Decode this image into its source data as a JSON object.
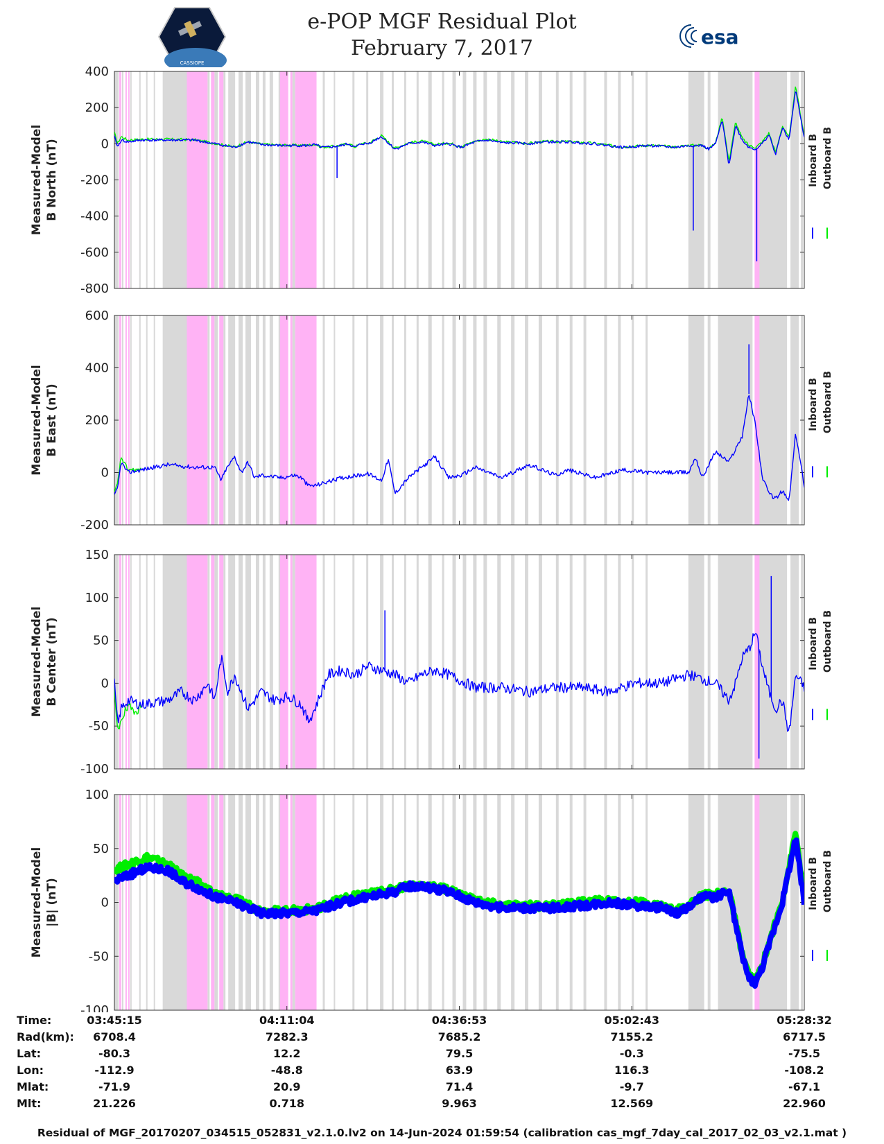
{
  "header": {
    "title_line1": "e-POP MGF Residual Plot",
    "title_line2": "February 7, 2017",
    "logo_left_text": "CASSIOPE",
    "logo_right_text": "esa"
  },
  "colors": {
    "inboard": "#0000ff",
    "outboard": "#00ee00",
    "gray_band": "#d9d9d9",
    "pink_band": "#ffb3f5"
  },
  "legend": {
    "inboard": "Inboard B",
    "outboard": "Outboard B"
  },
  "chart_data": [
    {
      "type": "line",
      "ylabel_line1": "Measured-Model",
      "ylabel_line2": "B North (nT)",
      "ylim": [
        -800,
        400
      ],
      "yticks": [
        400,
        200,
        0,
        -200,
        -400,
        -600,
        -800
      ],
      "xlim": [
        0,
        6197
      ],
      "series": [
        {
          "name": "Inboard B",
          "x": [
            0,
            30,
            60,
            120,
            240,
            480,
            720,
            900,
            1080,
            1200,
            1320,
            1500,
            1620,
            1740,
            1800,
            1860,
            1920,
            2040,
            2100,
            2160,
            2220,
            2280,
            2400,
            2520,
            2640,
            2760,
            2880,
            3000,
            3120,
            3240,
            3360,
            3480,
            3600,
            3720,
            3840,
            4080,
            4320,
            4560,
            4800,
            4920,
            5040,
            5160,
            5280,
            5340,
            5400,
            5460,
            5520,
            5580,
            5640,
            5700,
            5760,
            5820,
            5880,
            5940,
            6000,
            6060,
            6120,
            6197
          ],
          "values": [
            40,
            -20,
            20,
            10,
            20,
            20,
            20,
            0,
            -20,
            10,
            -5,
            -10,
            -10,
            -10,
            -5,
            -20,
            -20,
            -10,
            0,
            -20,
            0,
            0,
            40,
            -30,
            0,
            10,
            -10,
            0,
            -20,
            10,
            20,
            5,
            5,
            0,
            10,
            10,
            0,
            -20,
            -10,
            -15,
            -20,
            -10,
            -10,
            -30,
            0,
            130,
            -120,
            100,
            20,
            -20,
            -30,
            0,
            50,
            -60,
            90,
            20,
            300,
            30
          ]
        },
        {
          "name": "Outboard B",
          "x": [
            0,
            30,
            60,
            120,
            240,
            480,
            720,
            900,
            1080,
            1200,
            1320,
            1500,
            1620,
            1740,
            1800,
            1860,
            1920,
            2040,
            2100,
            2160,
            2220,
            2280,
            2400,
            2520,
            2640,
            2760,
            2880,
            3000,
            3120,
            3240,
            3360,
            3480,
            3600,
            3720,
            3840,
            4080,
            4320,
            4560,
            4800,
            4920,
            5040,
            5160,
            5280,
            5340,
            5400,
            5460,
            5520,
            5580,
            5640,
            5700,
            5760,
            5820,
            5880,
            5940,
            6000,
            6060,
            6120,
            6197
          ],
          "values": [
            60,
            0,
            40,
            20,
            25,
            25,
            22,
            2,
            -18,
            12,
            -3,
            -8,
            -8,
            -8,
            -3,
            -18,
            -18,
            -8,
            2,
            -18,
            2,
            2,
            45,
            -25,
            5,
            15,
            -5,
            5,
            -15,
            15,
            25,
            10,
            8,
            2,
            12,
            12,
            2,
            -18,
            -8,
            -13,
            -18,
            -8,
            -8,
            -28,
            5,
            150,
            -100,
            120,
            30,
            -10,
            -20,
            10,
            60,
            -50,
            100,
            30,
            320,
            40
          ]
        }
      ],
      "spikes": [
        {
          "x": 2000,
          "value": -190
        },
        {
          "x": 5770,
          "value": -650
        },
        {
          "x": 5200,
          "value": -480
        }
      ]
    },
    {
      "type": "line",
      "ylabel_line1": "Measured-Model",
      "ylabel_line2": "B East (nT)",
      "ylim": [
        -200,
        600
      ],
      "yticks": [
        600,
        400,
        200,
        0,
        -200
      ],
      "xlim": [
        0,
        6197
      ],
      "series": [
        {
          "name": "Inboard B",
          "x": [
            0,
            30,
            60,
            120,
            240,
            480,
            720,
            900,
            960,
            1000,
            1080,
            1140,
            1200,
            1260,
            1320,
            1500,
            1620,
            1680,
            1740,
            1800,
            2040,
            2280,
            2400,
            2460,
            2520,
            2640,
            2880,
            3000,
            3120,
            3240,
            3480,
            3720,
            3960,
            4080,
            4320,
            4560,
            4800,
            5160,
            5220,
            5280,
            5400,
            5520,
            5640,
            5700,
            5760,
            5820,
            5880,
            5940,
            6000,
            6060,
            6120,
            6197
          ],
          "values": [
            -90,
            -60,
            40,
            0,
            10,
            30,
            20,
            20,
            -30,
            10,
            60,
            0,
            40,
            -20,
            -10,
            -20,
            -10,
            -20,
            -50,
            -50,
            -20,
            -5,
            -30,
            50,
            -80,
            -20,
            60,
            -20,
            -10,
            20,
            -20,
            30,
            -10,
            10,
            -20,
            10,
            0,
            0,
            60,
            -20,
            80,
            40,
            140,
            300,
            180,
            -20,
            -80,
            -100,
            -70,
            -110,
            150,
            -50
          ]
        },
        {
          "name": "Outboard B",
          "x": [
            0,
            30,
            60,
            120,
            240
          ],
          "values": [
            -80,
            -40,
            60,
            10,
            10
          ]
        }
      ],
      "spikes": [
        {
          "x": 5700,
          "value": 490
        }
      ]
    },
    {
      "type": "line",
      "ylabel_line1": "Measured-Model",
      "ylabel_line2": "B Center (nT)",
      "ylim": [
        -100,
        150
      ],
      "yticks": [
        150,
        100,
        50,
        0,
        -50,
        -100
      ],
      "xlim": [
        0,
        6197
      ],
      "series": [
        {
          "name": "Inboard B",
          "x": [
            0,
            30,
            60,
            120,
            240,
            480,
            600,
            720,
            840,
            900,
            960,
            1020,
            1080,
            1200,
            1320,
            1440,
            1560,
            1680,
            1740,
            1800,
            1920,
            2040,
            2160,
            2280,
            2400,
            2520,
            2640,
            2760,
            2880,
            3000,
            3240,
            3480,
            3720,
            3960,
            4200,
            4440,
            4680,
            4920,
            5040,
            5160,
            5280,
            5400,
            5520,
            5580,
            5640,
            5700,
            5760,
            5820,
            5880,
            5940,
            6000,
            6060,
            6120,
            6197
          ],
          "values": [
            0,
            -50,
            -30,
            -20,
            -25,
            -20,
            -10,
            -20,
            0,
            -20,
            30,
            -10,
            10,
            -30,
            -10,
            -20,
            -15,
            -25,
            -45,
            -30,
            10,
            15,
            10,
            20,
            15,
            10,
            0,
            10,
            15,
            10,
            -5,
            -5,
            -10,
            -5,
            -5,
            -10,
            0,
            0,
            5,
            10,
            5,
            0,
            -20,
            0,
            30,
            40,
            60,
            20,
            -10,
            -30,
            -20,
            -60,
            10,
            -5
          ]
        },
        {
          "name": "Outboard B",
          "x": [
            0,
            30,
            60,
            120,
            240
          ],
          "values": [
            -10,
            -60,
            -40,
            -30,
            -30
          ]
        }
      ],
      "spikes": [
        {
          "x": 2430,
          "value": 85
        },
        {
          "x": 5790,
          "value": -88
        },
        {
          "x": 5900,
          "value": 125
        }
      ]
    },
    {
      "type": "line",
      "ylabel_line1": "Measured-Model",
      "ylabel_line2": "|B| (nT)",
      "ylim": [
        -100,
        100
      ],
      "yticks": [
        100,
        50,
        0,
        -50,
        -100
      ],
      "xlim": [
        0,
        6197
      ],
      "series": [
        {
          "name": "Inboard B",
          "x": [
            0,
            120,
            240,
            300,
            480,
            600,
            720,
            900,
            1080,
            1200,
            1320,
            1560,
            1800,
            2040,
            2280,
            2520,
            2640,
            2760,
            3000,
            3240,
            3480,
            3600,
            3720,
            3960,
            4200,
            4440,
            4680,
            4920,
            5040,
            5160,
            5280,
            5400,
            5520,
            5580,
            5640,
            5700,
            5760,
            5820,
            5880,
            5940,
            6000,
            6060,
            6120,
            6197
          ],
          "values": [
            20,
            25,
            30,
            32,
            30,
            20,
            15,
            5,
            0,
            -5,
            -10,
            -10,
            -8,
            0,
            5,
            10,
            15,
            15,
            10,
            0,
            -5,
            -5,
            -5,
            -5,
            -3,
            0,
            -3,
            -5,
            -10,
            -5,
            5,
            5,
            10,
            -20,
            -50,
            -70,
            -75,
            -60,
            -40,
            -20,
            0,
            30,
            60,
            0
          ]
        },
        {
          "name": "Outboard B",
          "x": [
            0,
            120,
            240,
            300,
            480,
            600,
            720,
            900,
            1080,
            1200,
            1320,
            1560,
            1800,
            2040,
            2280,
            2520,
            2640,
            2760,
            3000,
            3240,
            3480,
            3600,
            3720,
            3960,
            4200,
            4440,
            4680,
            4920,
            5040,
            5160,
            5280,
            5400,
            5520,
            5580,
            5640,
            5700,
            5760,
            5820,
            5880,
            5940,
            6000,
            6060,
            6120,
            6197
          ],
          "values": [
            30,
            35,
            40,
            42,
            35,
            25,
            20,
            8,
            3,
            -2,
            -8,
            -8,
            -6,
            3,
            8,
            12,
            16,
            16,
            12,
            2,
            -3,
            -3,
            -3,
            -3,
            0,
            2,
            0,
            -3,
            -8,
            -3,
            7,
            7,
            12,
            -18,
            -48,
            -68,
            -73,
            -58,
            -38,
            -18,
            2,
            33,
            65,
            5
          ]
        }
      ],
      "spikes": []
    }
  ],
  "footer": {
    "rows": [
      {
        "label": "Time:",
        "values": [
          "03:45:15",
          "04:11:04",
          "04:36:53",
          "05:02:43",
          "05:28:32"
        ]
      },
      {
        "label": "Rad(km):",
        "values": [
          "6708.4",
          "7282.3",
          "7685.2",
          "7155.2",
          "6717.5"
        ]
      },
      {
        "label": "Lat:",
        "values": [
          "-80.3",
          "12.2",
          "79.5",
          "-0.3",
          "-75.5"
        ]
      },
      {
        "label": "Lon:",
        "values": [
          "-112.9",
          "-48.8",
          "63.9",
          "116.3",
          "-108.2"
        ]
      },
      {
        "label": "Mlat:",
        "values": [
          "-71.9",
          "20.9",
          "71.4",
          "-9.7",
          "-67.1"
        ]
      },
      {
        "label": "Mlt:",
        "values": [
          "21.226",
          "0.718",
          "9.963",
          "12.569",
          "22.960"
        ]
      }
    ],
    "caption": "Residual of MGF_20170207_034515_052831_v2.1.0.lv2 on 14-Jun-2024 01:59:54 (calibration cas_mgf_7day_cal_2017_02_03_v2.1.mat )"
  }
}
